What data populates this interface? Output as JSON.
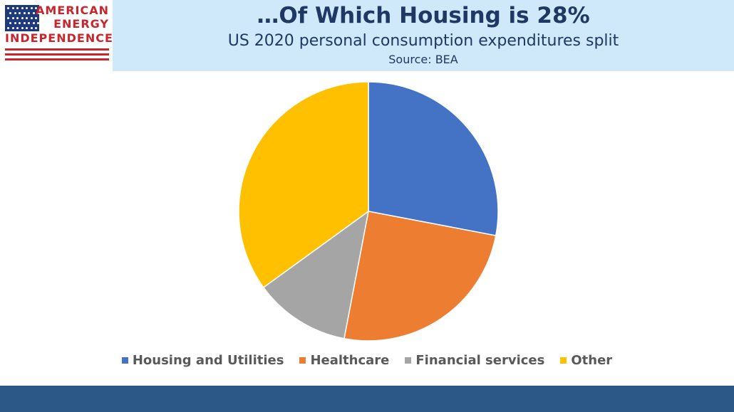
{
  "logo": {
    "line1": "AMERICAN",
    "line2": "ENERGY",
    "line3": "INDEPENDENCE"
  },
  "banner": {
    "title": "…Of Which Housing is 28%",
    "subtitle": "US 2020 personal consumption expenditures split",
    "source": "Source: BEA"
  },
  "chart_data": {
    "type": "pie",
    "title": "…Of Which Housing is 28%",
    "subtitle": "US 2020 personal consumption expenditures split",
    "source": "Source: BEA",
    "legend_position": "bottom",
    "categories": [
      "Housing and Utilities",
      "Healthcare",
      "Financial services",
      "Other"
    ],
    "values": [
      28,
      25,
      12,
      35
    ],
    "colors": [
      "#4472c4",
      "#ed7d31",
      "#a5a5a5",
      "#ffc000"
    ],
    "start_angle_deg": 0,
    "direction": "clockwise"
  }
}
